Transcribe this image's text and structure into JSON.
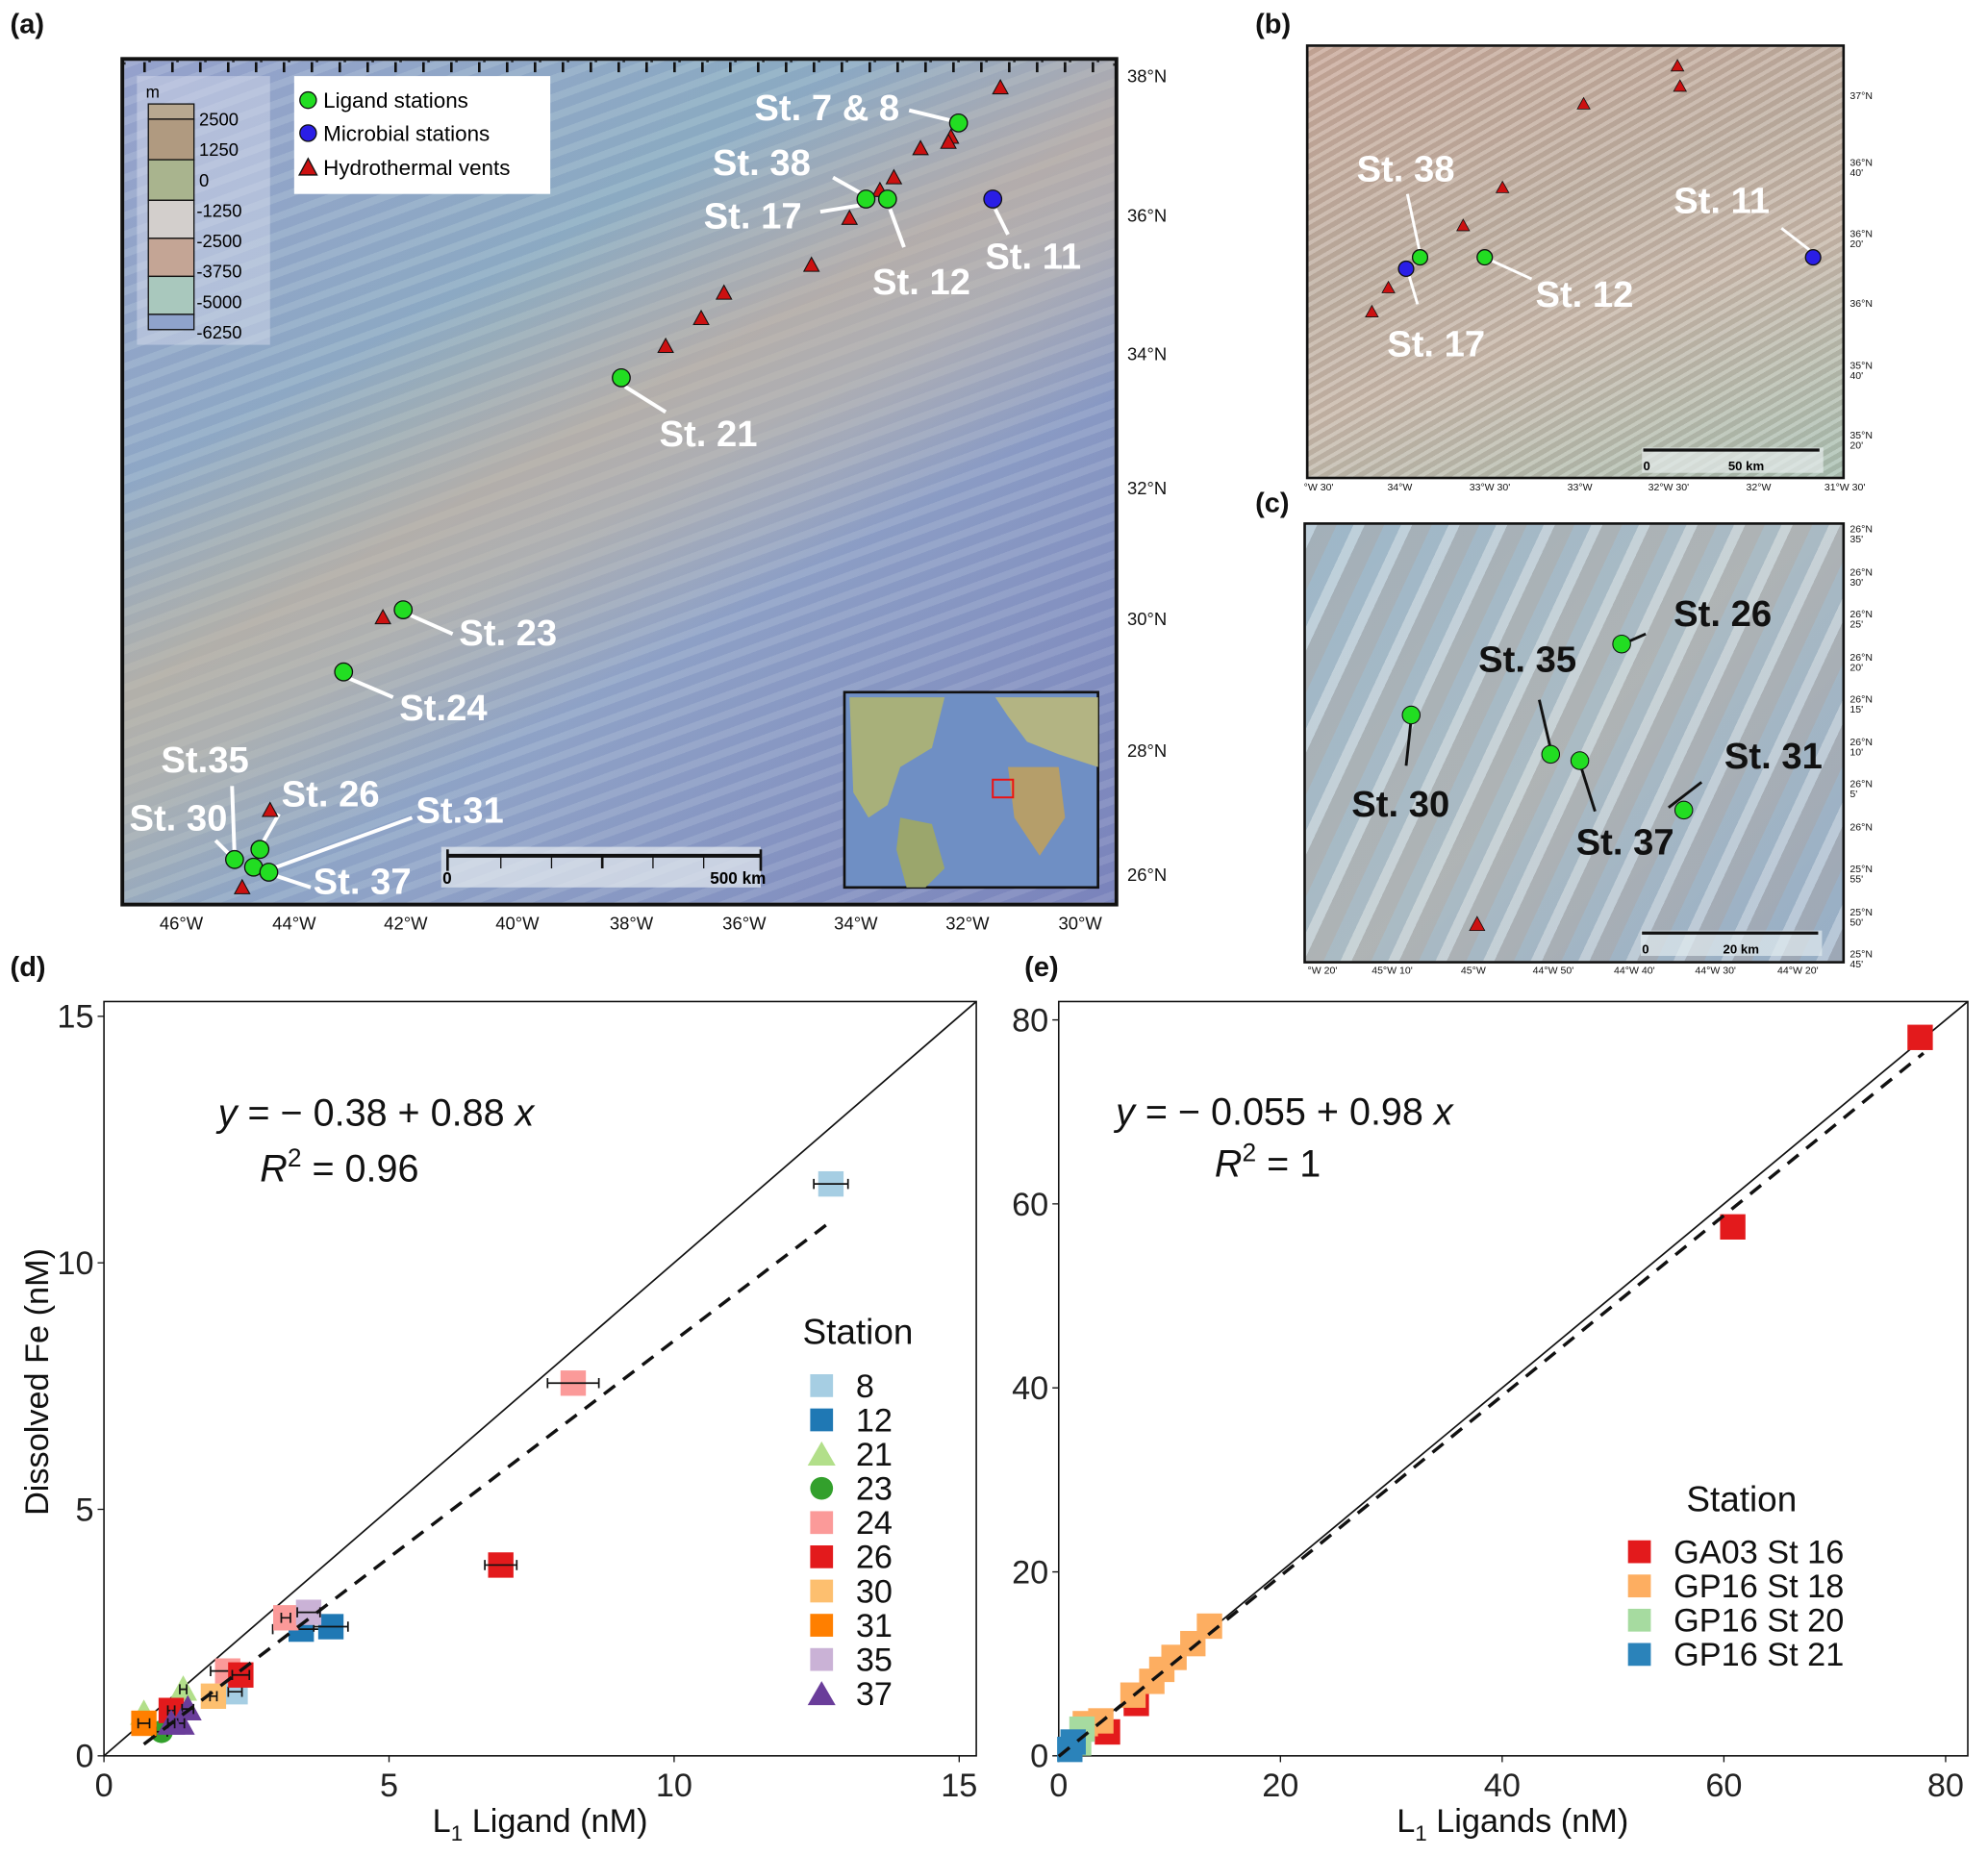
{
  "panel_labels": {
    "a": "(a)",
    "b": "(b)",
    "c": "(c)",
    "d": "(d)",
    "e": "(e)"
  },
  "map_a": {
    "colorbar": {
      "unit": "m",
      "ticks": [
        "2500",
        "1250",
        "0",
        "-1250",
        "-2500",
        "-3750",
        "-5000",
        "-6250"
      ]
    },
    "legend": {
      "ligand": "Ligand stations",
      "microbial": "Microbial stations",
      "vents": "Hydrothermal vents"
    },
    "colors": {
      "ligand": "#22dd22",
      "microbial": "#2a1ee6",
      "vent": "#cc1111"
    },
    "stations": [
      "St. 7 & 8",
      "St. 38",
      "St. 17",
      "St. 12",
      "St. 11",
      "St. 21",
      "St. 23",
      "St.24",
      "St.35",
      "St. 26",
      "St. 30",
      "St.31",
      "St. 37"
    ],
    "lat_labels": [
      "38°N",
      "36°N",
      "34°N",
      "32°N",
      "30°N",
      "28°N",
      "26°N"
    ],
    "lon_labels": [
      "46°W",
      "44°W",
      "42°W",
      "40°W",
      "38°W",
      "36°W",
      "34°W",
      "32°W",
      "30°W"
    ],
    "scale_bar": {
      "zero": "0",
      "label": "500 km"
    }
  },
  "map_b": {
    "stations": [
      "St. 38",
      "St. 17",
      "St. 12",
      "St. 11"
    ],
    "lat_labels": [
      [
        "37°N",
        ""
      ],
      [
        "36°N",
        "40'"
      ],
      [
        "36°N",
        "20'"
      ],
      [
        "36°N",
        ""
      ],
      [
        "35°N",
        "40'"
      ],
      [
        "35°N",
        "20'"
      ]
    ],
    "lon_labels": [
      "°W 30'",
      "34°W",
      "33°W 30'",
      "33°W",
      "32°W 30'",
      "32°W",
      "31°W 30'"
    ],
    "scale_bar": {
      "zero": "0",
      "label": "50 km"
    }
  },
  "map_c": {
    "stations": [
      "St. 26",
      "St. 35",
      "St. 30",
      "St. 37",
      "St. 31"
    ],
    "lat_labels": [
      [
        "26°N",
        "35'"
      ],
      [
        "26°N",
        "30'"
      ],
      [
        "26°N",
        "25'"
      ],
      [
        "26°N",
        "20'"
      ],
      [
        "26°N",
        "15'"
      ],
      [
        "26°N",
        "10'"
      ],
      [
        "26°N",
        "5'"
      ],
      [
        "26°N",
        ""
      ],
      [
        "25°N",
        "55'"
      ],
      [
        "25°N",
        "50'"
      ],
      [
        "25°N",
        "45'"
      ]
    ],
    "lon_labels": [
      "°W 20'",
      "45°W 10'",
      "45°W",
      "44°W 50'",
      "44°W 40'",
      "44°W 30'",
      "44°W 20'"
    ],
    "scale_bar": {
      "zero": "0",
      "label": "20 km"
    }
  },
  "chart_data": [
    {
      "id": "d",
      "type": "scatter",
      "xlabel": "L1 Ligand (nM)",
      "xlabel_main": "L",
      "xlabel_sub": "1",
      "xlabel_rest": " Ligand (nM)",
      "ylabel": "Dissolved Fe (nM)",
      "xlim": [
        0,
        15.3
      ],
      "ylim": [
        0,
        15.3
      ],
      "xticks": [
        "0",
        "5",
        "10",
        "15"
      ],
      "yticks": [
        "0",
        "5",
        "10",
        "15"
      ],
      "equation": {
        "lhs": "y",
        "rhs": " = − 0.38 + 0.88 ",
        "x": "x",
        "r2_label": "R",
        "r2_sup": "2",
        "r2_value": " = 0.96"
      },
      "fit": {
        "intercept": -0.38,
        "slope": 0.88,
        "x_range": [
          0.7,
          12.8
        ]
      },
      "one_to_one": true,
      "legend_title": "Station",
      "series": [
        {
          "name": "8",
          "color": "#a6cee3",
          "shape": "square",
          "points": [
            [
              12.75,
              11.6,
              0.3
            ],
            [
              2.3,
              1.3,
              0.12
            ]
          ]
        },
        {
          "name": "12",
          "color": "#1f78b4",
          "shape": "square",
          "points": [
            [
              3.46,
              2.57,
              0.5
            ],
            [
              3.98,
              2.62,
              0.3
            ]
          ]
        },
        {
          "name": "21",
          "color": "#b2df8a",
          "shape": "triangle",
          "points": [
            [
              1.39,
              1.35,
              0.06
            ],
            [
              0.7,
              0.86,
              0
            ]
          ]
        },
        {
          "name": "23",
          "color": "#33a02c",
          "shape": "circle",
          "points": [
            [
              1.01,
              0.49,
              0.1
            ]
          ]
        },
        {
          "name": "24",
          "color": "#fb9a99",
          "shape": "square",
          "points": [
            [
              8.23,
              7.56,
              0.45
            ],
            [
              3.19,
              2.8,
              0.08
            ],
            [
              2.17,
              1.72,
              0.3
            ]
          ]
        },
        {
          "name": "26",
          "color": "#e31a1c",
          "shape": "square",
          "points": [
            [
              6.96,
              3.87,
              0.28
            ],
            [
              2.4,
              1.64,
              0.15
            ],
            [
              1.18,
              0.92,
              0.06
            ]
          ]
        },
        {
          "name": "30",
          "color": "#fdbf6f",
          "shape": "square",
          "points": [
            [
              1.92,
              1.21,
              0.06
            ]
          ]
        },
        {
          "name": "31",
          "color": "#ff7f00",
          "shape": "square",
          "points": [
            [
              0.7,
              0.66,
              0.1
            ]
          ]
        },
        {
          "name": "35",
          "color": "#cab2d6",
          "shape": "square",
          "points": [
            [
              3.59,
              2.91,
              0.2
            ]
          ]
        },
        {
          "name": "37",
          "color": "#6a3d9a",
          "shape": "triangle",
          "points": [
            [
              1.47,
              0.95,
              0.1
            ],
            [
              1.35,
              0.66,
              0.06
            ],
            [
              1.18,
              0.66,
              0.06
            ]
          ]
        }
      ]
    },
    {
      "id": "e",
      "type": "scatter",
      "xlabel": "L1 Ligands (nM)",
      "xlabel_main": "L",
      "xlabel_sub": "1",
      "xlabel_rest": " Ligands (nM)",
      "ylabel": "",
      "xlim": [
        0,
        82
      ],
      "ylim": [
        0,
        82
      ],
      "xticks": [
        "0",
        "20",
        "40",
        "60",
        "80"
      ],
      "yticks": [
        "0",
        "20",
        "40",
        "60",
        "80"
      ],
      "equation": {
        "lhs": "y",
        "rhs": " = − 0.055 + 0.98 ",
        "x": "x",
        "r2_label": "R",
        "r2_sup": "2",
        "r2_value": " = 1"
      },
      "fit": {
        "intercept": -0.055,
        "slope": 0.98,
        "x_range": [
          0,
          78
        ]
      },
      "one_to_one": true,
      "legend_title": "Station",
      "series": [
        {
          "name": "GA03 St 16",
          "color": "#e31a1c",
          "shape": "square",
          "points": [
            [
              77.7,
              78.1,
              0
            ],
            [
              60.8,
              57.5,
              0
            ],
            [
              7.0,
              5.7,
              0
            ],
            [
              4.4,
              2.6,
              0
            ]
          ]
        },
        {
          "name": "GP16 St 18",
          "color": "#fdae61",
          "shape": "square",
          "points": [
            [
              13.6,
              14.1,
              0
            ],
            [
              12.1,
              12.2,
              0
            ],
            [
              10.4,
              10.7,
              0
            ],
            [
              9.3,
              9.4,
              0
            ],
            [
              8.4,
              8.1,
              0
            ],
            [
              6.7,
              6.6,
              0
            ],
            [
              3.8,
              3.8,
              0
            ],
            [
              2.4,
              3.5,
              0
            ]
          ]
        },
        {
          "name": "GP16 St 20",
          "color": "#a6dba0",
          "shape": "square",
          "points": [
            [
              2.1,
              2.9,
              0
            ],
            [
              1.8,
              1.4,
              0
            ]
          ]
        },
        {
          "name": "GP16 St 21",
          "color": "#2b83ba",
          "shape": "square",
          "points": [
            [
              1.3,
              1.5,
              0
            ],
            [
              1.0,
              0.7,
              0
            ]
          ]
        }
      ]
    }
  ]
}
